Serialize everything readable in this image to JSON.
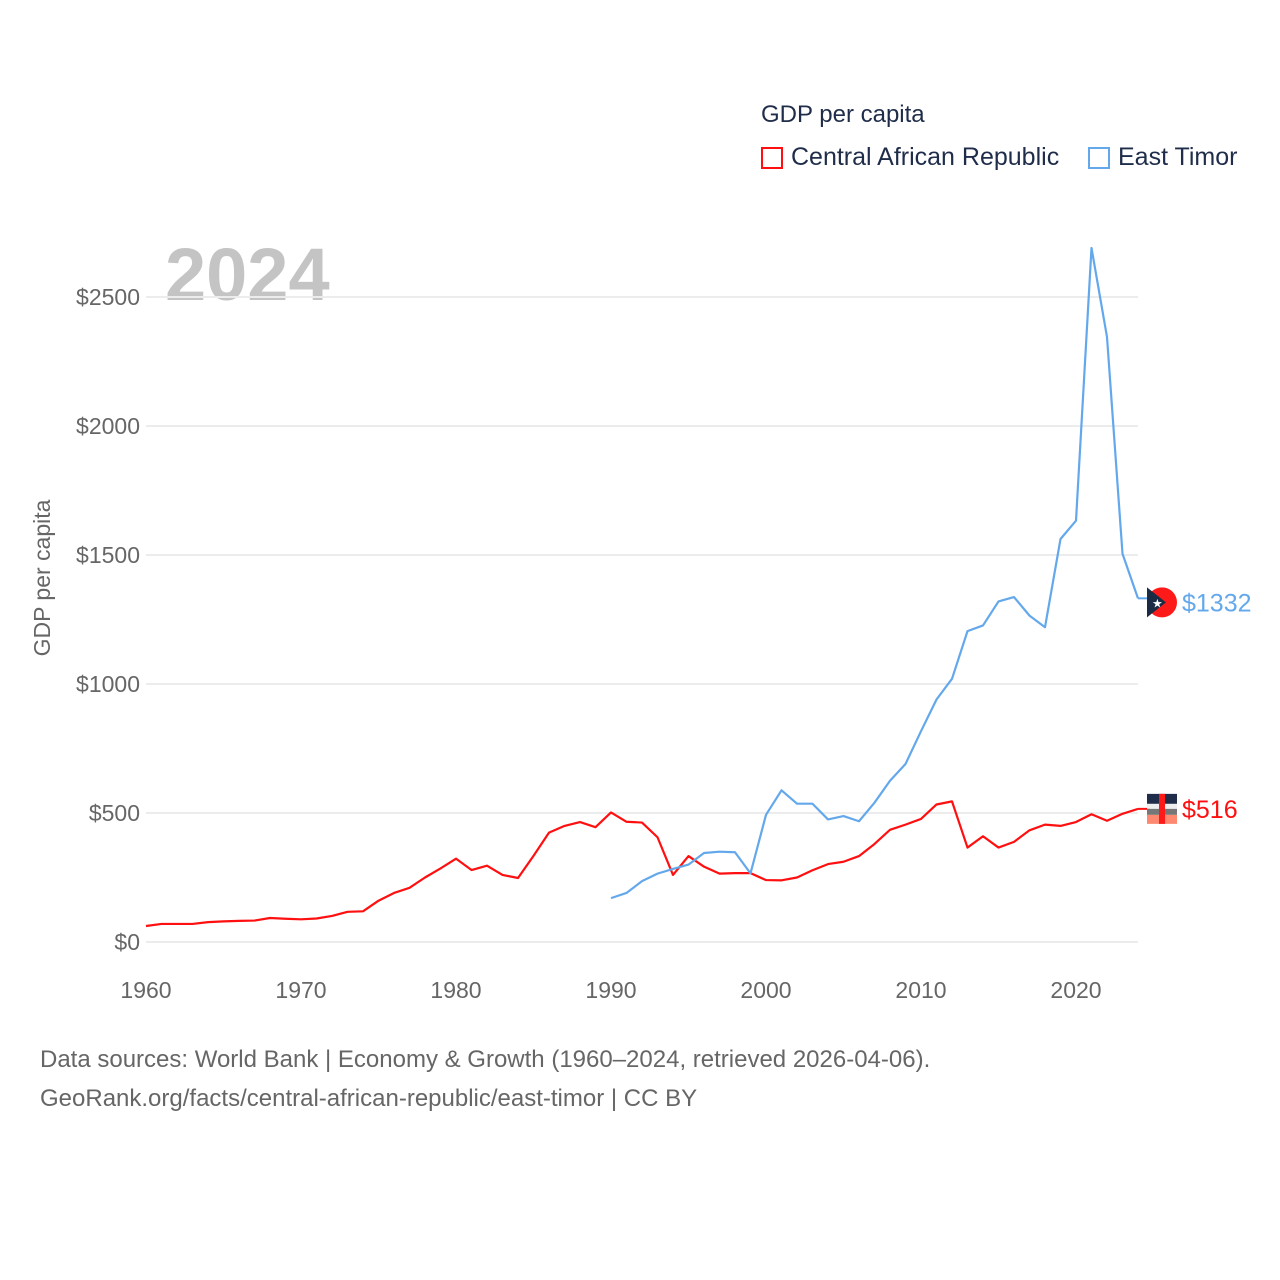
{
  "chart_data": {
    "type": "line",
    "title": "GDP per capita",
    "year_label": "2024",
    "ylabel": "GDP per capita",
    "xlabel": "",
    "xlim": [
      1960,
      2024
    ],
    "ylim": [
      0,
      2500
    ],
    "x_ticks": [
      1960,
      1970,
      1980,
      1990,
      2000,
      2010,
      2020
    ],
    "y_ticks": [
      {
        "v": 0,
        "label": "$0"
      },
      {
        "v": 500,
        "label": "$500"
      },
      {
        "v": 1000,
        "label": "$1000"
      },
      {
        "v": 1500,
        "label": "$1500"
      },
      {
        "v": 2000,
        "label": "$2000"
      },
      {
        "v": 2500,
        "label": "$2500"
      }
    ],
    "grid": true,
    "legend_position": "top-right",
    "series": [
      {
        "name": "Central African Republic",
        "color": "#ff0f0f",
        "start": 1960,
        "end_label": "$516",
        "values": [
          62,
          70,
          70,
          70,
          77,
          80,
          82,
          83,
          93,
          90,
          88,
          91,
          101,
          117,
          119,
          160,
          190,
          210,
          250,
          285,
          323,
          279,
          296,
          260,
          248,
          334,
          424,
          450,
          465,
          445,
          502,
          466,
          463,
          406,
          260,
          333,
          292,
          265,
          267,
          267,
          240,
          239,
          250,
          278,
          302,
          311,
          333,
          380,
          435,
          455,
          477,
          533,
          545,
          366,
          410,
          366,
          388,
          433,
          455,
          450,
          465,
          495,
          470,
          497,
          516
        ]
      },
      {
        "name": "East Timor",
        "color": "#64a8ec",
        "start": 1990,
        "end_label": "$1332",
        "values": [
          170,
          190,
          236,
          265,
          283,
          300,
          345,
          350,
          348,
          266,
          493,
          588,
          536,
          536,
          475,
          488,
          468,
          540,
          625,
          690,
          817,
          940,
          1020,
          1205,
          1227,
          1320,
          1337,
          1265,
          1220,
          1562,
          1633,
          2690,
          2345,
          1505,
          1332
        ]
      }
    ]
  },
  "sources": {
    "line1": "Data sources: World Bank | Economy & Growth (1960–2024, retrieved 2026-04-06).",
    "line2": "GeoRank.org/facts/central-african-republic/east-timor | CC BY"
  }
}
